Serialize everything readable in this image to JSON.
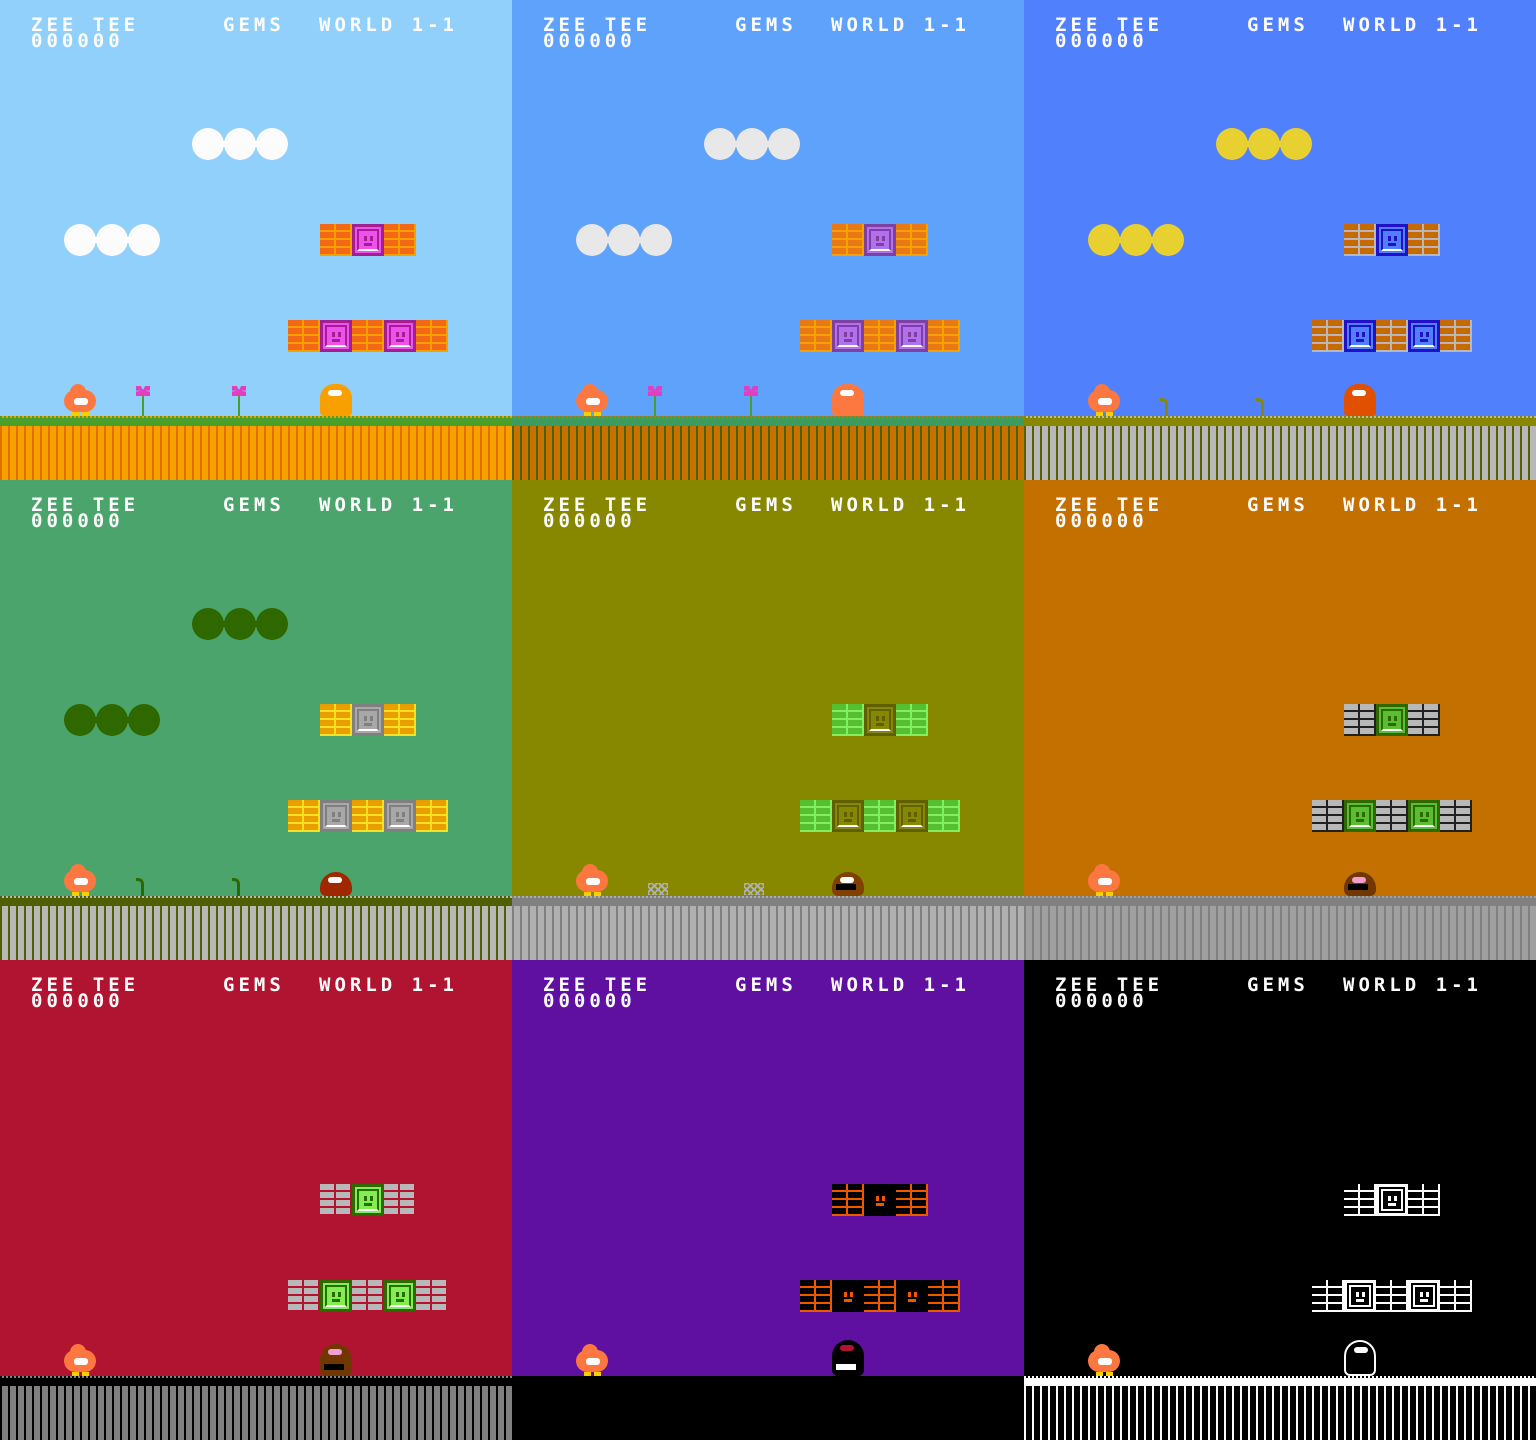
{
  "hud": {
    "player": "ZEE TEE",
    "score": "000000",
    "gems": "GEMS",
    "world": "WORLD 1-1"
  },
  "panels": [
    {
      "theme": "day-sky",
      "sky": "#92d0fc",
      "cloud": "#fcfcfc",
      "brick": "#f06818",
      "mortar": "#f8a000",
      "gem": "#f050f0",
      "gem_border": "#a02090",
      "gem_face": "#a02090",
      "ground_top": "#48a028",
      "ground_fill": "#f8a000",
      "ground_stripe": "#e07000",
      "decoration": "flower",
      "deco_color": "#e040c0",
      "enemy": "#f8a000",
      "enemy_outline": "#f8a000"
    },
    {
      "theme": "blue-sky",
      "sky": "#5ea2fc",
      "cloud": "#e8e8e8",
      "brick": "#e87818",
      "mortar": "#f8a000",
      "gem": "#b070f0",
      "gem_border": "#8040a0",
      "gem_face": "#8040a0",
      "ground_top": "#3c9c5c",
      "ground_fill": "#c87000",
      "ground_stripe": "#506000",
      "decoration": "flower",
      "deco_color": "#e040c0",
      "enemy": "#fc7840",
      "enemy_outline": "#fc7840"
    },
    {
      "theme": "deep-blue",
      "sky": "#5080fc",
      "cloud": "#e8d030",
      "brick": "#c86800",
      "mortar": "#b8b8b8",
      "gem": "#5080fc",
      "gem_border": "#2010c8",
      "gem_face": "#2010c8",
      "ground_top": "#888800",
      "ground_fill": "#b8b8b8",
      "ground_stripe": "#586000",
      "decoration": "sprout",
      "deco_color": "#888800",
      "enemy": "#e05000",
      "enemy_outline": "#e05000"
    },
    {
      "theme": "forest",
      "sky": "#4aa46c",
      "cloud": "#306800",
      "brick": "#e8a000",
      "mortar": "#f8e020",
      "gem": "#a8a8a8",
      "gem_border": "#808080",
      "gem_face": "#808080",
      "ground_top": "#506000",
      "ground_fill": "#b8b8b8",
      "ground_stripe": "#506000",
      "decoration": "sprout",
      "deco_color": "#306800",
      "enemy": "#a02800",
      "enemy_outline": "#a02800"
    },
    {
      "theme": "swamp",
      "sky": "#888800",
      "cloud": null,
      "brick": "#58c030",
      "mortar": "#80f060",
      "gem": "#888800",
      "gem_border": "#606000",
      "gem_face": "#606000",
      "ground_top": "#808080",
      "ground_fill": "#b0b0b0",
      "ground_stripe": "#808080",
      "decoration": "bones",
      "deco_color": "#b0b0b0",
      "enemy": "#804000",
      "enemy_outline": "#804000"
    },
    {
      "theme": "desert",
      "sky": "#c47000",
      "cloud": null,
      "brick": "#b8b8b8",
      "mortar": "#202020",
      "gem": "#58c030",
      "gem_border": "#306800",
      "gem_face": "#306800",
      "ground_top": "#808080",
      "ground_fill": "#a0a0a0",
      "ground_stripe": "#808080",
      "decoration": null,
      "deco_color": null,
      "enemy": "#703800",
      "enemy_outline": "#703800"
    },
    {
      "theme": "crimson",
      "sky": "#b01430",
      "cloud": null,
      "brick": "#b8b8b8",
      "mortar": "#b01430",
      "gem": "#80f050",
      "gem_border": "#306800",
      "gem_face": "#306800",
      "ground_top": "#000000",
      "ground_fill": "#808080",
      "ground_stripe": "#000000",
      "decoration": null,
      "deco_color": null,
      "enemy": "#703800",
      "enemy_outline": "#703800"
    },
    {
      "theme": "void-purple",
      "sky": "#5f10a0",
      "cloud": null,
      "brick": "#000000",
      "mortar": "#f05800",
      "gem": "#000000",
      "gem_border": "#000000",
      "gem_face": "#f05800",
      "ground_top": "#000000",
      "ground_fill": "#000000",
      "ground_stripe": "#000000",
      "decoration": null,
      "deco_color": null,
      "enemy": "#000000",
      "enemy_outline": "#000000"
    },
    {
      "theme": "monochrome",
      "sky": "#000000",
      "cloud": null,
      "brick": "#000000",
      "mortar": "#fcfcfc",
      "gem": "#000000",
      "gem_border": "#fcfcfc",
      "gem_face": "#fcfcfc",
      "ground_top": "#fcfcfc",
      "ground_fill": "#000000",
      "ground_stripe": "#fcfcfc",
      "decoration": null,
      "deco_color": null,
      "enemy": "#000000",
      "enemy_outline": "#fcfcfc"
    }
  ]
}
